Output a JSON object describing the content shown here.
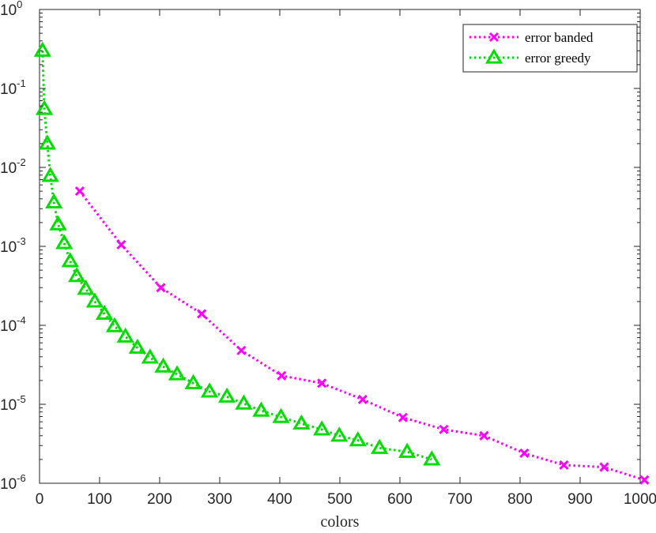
{
  "chart_data": {
    "type": "line",
    "xlabel": "colors",
    "ylabel": "",
    "title": "",
    "xlim": [
      0,
      1000
    ],
    "ylim": [
      1e-06,
      1
    ],
    "yscale": "log",
    "xticks": [
      0,
      100,
      200,
      300,
      400,
      500,
      600,
      700,
      800,
      900,
      1000
    ],
    "yticks": [
      {
        "base": "10",
        "exp": "0",
        "value": 1
      },
      {
        "base": "10",
        "exp": "-1",
        "value": 0.1
      },
      {
        "base": "10",
        "exp": "-2",
        "value": 0.01
      },
      {
        "base": "10",
        "exp": "-3",
        "value": 0.001
      },
      {
        "base": "10",
        "exp": "-4",
        "value": 0.0001
      },
      {
        "base": "10",
        "exp": "-5",
        "value": 1e-05
      },
      {
        "base": "10",
        "exp": "-6",
        "value": 1e-06
      }
    ],
    "grid": false,
    "legend": "top-right",
    "series": [
      {
        "name": "error banded",
        "color": "#ff00ff",
        "marker": "x",
        "x": [
          67,
          136,
          202,
          270,
          336,
          403,
          470,
          538,
          605,
          673,
          740,
          807,
          873,
          940,
          1007
        ],
        "y": [
          0.005,
          0.00105,
          0.0003,
          0.00014,
          4.8e-05,
          2.3e-05,
          1.85e-05,
          1.15e-05,
          6.8e-06,
          4.8e-06,
          4e-06,
          2.4e-06,
          1.7e-06,
          1.6e-06,
          1.1e-06
        ]
      },
      {
        "name": "error greedy",
        "color": "#00dd00",
        "marker": "triangle",
        "x": [
          5,
          8,
          13,
          18,
          24,
          31,
          41,
          51,
          62,
          77,
          92,
          108,
          125,
          143,
          163,
          184,
          206,
          229,
          256,
          283,
          312,
          340,
          369,
          402,
          436,
          470,
          499,
          530,
          566,
          612,
          653
        ],
        "y": [
          0.3,
          0.055,
          0.02,
          0.0078,
          0.0036,
          0.0019,
          0.0011,
          0.00065,
          0.00042,
          0.00029,
          0.0002,
          0.00014,
          9.75e-05,
          7.2e-05,
          5.2e-05,
          3.9e-05,
          3e-05,
          2.4e-05,
          1.85e-05,
          1.45e-05,
          1.25e-05,
          1.02e-05,
          8.3e-06,
          6.9e-06,
          5.7e-06,
          4.8e-06,
          4e-06,
          3.5e-06,
          2.8e-06,
          2.5e-06,
          2e-06
        ]
      }
    ]
  }
}
